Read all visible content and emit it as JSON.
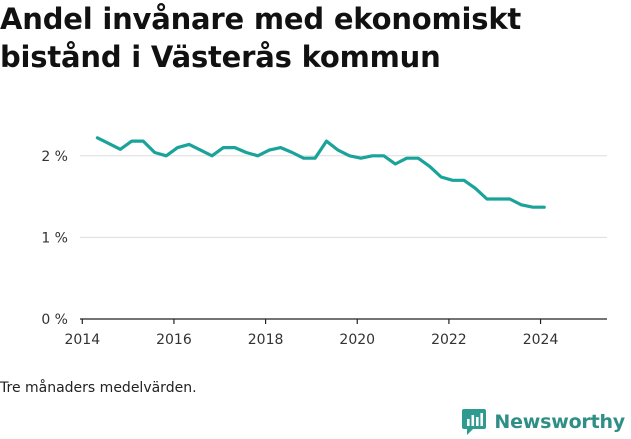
{
  "title": "Andel invånare med ekonomiskt bistånd i Västerås kommun",
  "caption": "Tre månaders medelvärden.",
  "brand": {
    "name": "Newsworthy",
    "color": "#2f9a8f",
    "icon": "newsworthy-logo-icon"
  },
  "colors": {
    "line": "#1aa39a",
    "grid": "#dddddd",
    "axis": "#222222"
  },
  "chart_data": {
    "type": "line",
    "title": "Andel invånare med ekonomiskt bistånd i Västerås kommun",
    "xlabel": "",
    "ylabel": "",
    "xlim": [
      2013.95,
      2025.45
    ],
    "ylim": [
      0,
      2.5
    ],
    "x_ticks": [
      2014,
      2016,
      2018,
      2020,
      2022,
      2024
    ],
    "x_tick_labels": [
      "2014",
      "2016",
      "2018",
      "2020",
      "2022",
      "2024"
    ],
    "y_ticks": [
      0,
      1,
      2
    ],
    "y_tick_labels": [
      "0 %",
      "1 %",
      "2 %"
    ],
    "grid": true,
    "series": [
      {
        "x": [
          2014.33,
          2014.58,
          2014.83,
          2015.08,
          2015.33,
          2015.58,
          2015.83,
          2016.08,
          2016.33,
          2016.58,
          2016.83,
          2017.08,
          2017.33,
          2017.58,
          2017.83,
          2018.08,
          2018.33,
          2018.58,
          2018.83,
          2019.08,
          2019.33,
          2019.58,
          2019.83,
          2020.08,
          2020.33,
          2020.58,
          2020.83,
          2021.08,
          2021.33,
          2021.58,
          2021.83,
          2022.08,
          2022.33,
          2022.58,
          2022.83,
          2023.08,
          2023.33,
          2023.58,
          2023.83,
          2024.08
        ],
        "values": [
          2.22,
          2.15,
          2.08,
          2.18,
          2.18,
          2.04,
          2.0,
          2.1,
          2.14,
          2.07,
          2.0,
          2.1,
          2.1,
          2.04,
          2.0,
          2.07,
          2.1,
          2.04,
          1.97,
          1.97,
          2.18,
          2.07,
          2.0,
          1.97,
          2.0,
          2.0,
          1.9,
          1.97,
          1.97,
          1.87,
          1.74,
          1.7,
          1.7,
          1.6,
          1.47,
          1.47,
          1.47,
          1.4,
          1.37,
          1.37
        ]
      }
    ]
  }
}
